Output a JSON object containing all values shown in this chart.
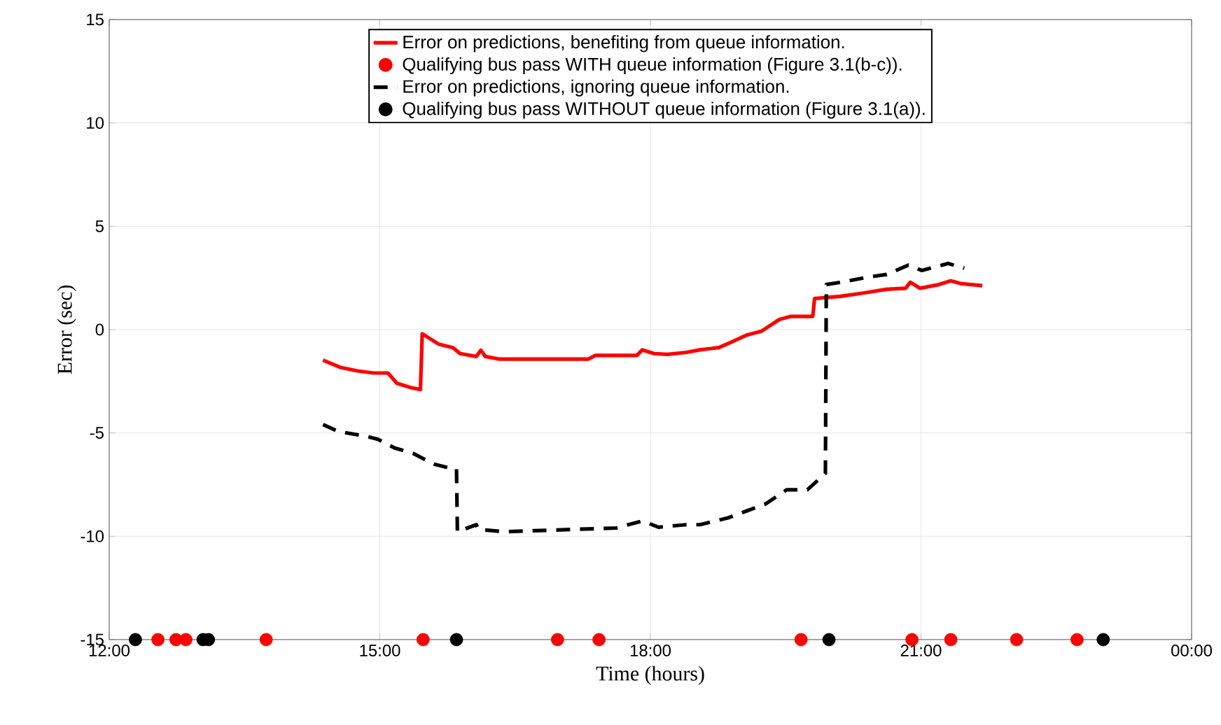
{
  "chart_data": {
    "type": "line",
    "xlabel": "Time (hours)",
    "ylabel": "Error (sec)",
    "xlim": [
      12,
      24
    ],
    "xticks": [
      {
        "value": 12,
        "label": "12:00"
      },
      {
        "value": 15,
        "label": "15:00"
      },
      {
        "value": 18,
        "label": "18:00"
      },
      {
        "value": 21,
        "label": "21:00"
      },
      {
        "value": 24,
        "label": "00:00"
      }
    ],
    "ylim": [
      -15,
      15
    ],
    "yticks": [
      -15,
      -10,
      -5,
      0,
      5,
      10,
      15
    ],
    "grid": true,
    "legend": "top",
    "series": [
      {
        "name": "Error on predictions, benefiting from queue information.",
        "color": "#ff0000",
        "line_style": "solid",
        "x": [
          14.37,
          14.57,
          14.75,
          14.93,
          15.09,
          15.19,
          15.34,
          15.45,
          15.47,
          15.65,
          15.81,
          15.89,
          16.07,
          16.12,
          16.17,
          16.33,
          17.31,
          17.39,
          17.85,
          17.91,
          18.04,
          18.19,
          18.4,
          18.55,
          18.76,
          18.91,
          19.07,
          19.23,
          19.43,
          19.56,
          19.8,
          19.82,
          20.11,
          20.36,
          20.62,
          20.83,
          20.88,
          20.99,
          21.2,
          21.33,
          21.45,
          21.68
        ],
        "values": [
          -1.48,
          -1.84,
          -2.0,
          -2.1,
          -2.1,
          -2.6,
          -2.8,
          -2.9,
          -0.2,
          -0.7,
          -0.87,
          -1.16,
          -1.3,
          -1.0,
          -1.3,
          -1.43,
          -1.43,
          -1.25,
          -1.25,
          -0.98,
          -1.16,
          -1.2,
          -1.1,
          -0.98,
          -0.87,
          -0.58,
          -0.26,
          -0.08,
          0.49,
          0.64,
          0.64,
          1.5,
          1.61,
          1.77,
          1.95,
          2.0,
          2.29,
          2.0,
          2.18,
          2.36,
          2.22,
          2.13
        ]
      },
      {
        "name": "Qualifying bus pass WITH queue information (Figure 3.1(b-c)).",
        "type": "scatter",
        "color": "#ff0000",
        "marker": "circle",
        "x": [
          12.54,
          12.74,
          12.85,
          13.74,
          15.48,
          16.97,
          17.43,
          19.67,
          20.9,
          21.33,
          22.06,
          22.73
        ],
        "values": [
          -15,
          -15,
          -15,
          -15,
          -15,
          -15,
          -15,
          -15,
          -15,
          -15,
          -15,
          -15
        ]
      },
      {
        "name": "Error on predictions, ignoring queue information.",
        "color": "#000000",
        "line_style": "dashed",
        "x": [
          14.37,
          14.54,
          14.85,
          14.98,
          15.16,
          15.37,
          15.6,
          15.81,
          15.85,
          15.86,
          16.07,
          16.09,
          16.38,
          17.62,
          17.91,
          18.09,
          18.4,
          18.55,
          18.86,
          19.07,
          19.28,
          19.51,
          19.74,
          19.94,
          19.95,
          20.11,
          20.39,
          20.62,
          20.86,
          21.01,
          21.3,
          21.48
        ],
        "values": [
          -4.59,
          -4.93,
          -5.16,
          -5.31,
          -5.72,
          -5.99,
          -6.51,
          -6.74,
          -6.74,
          -9.78,
          -9.44,
          -9.67,
          -9.78,
          -9.6,
          -9.26,
          -9.56,
          -9.44,
          -9.44,
          -9.11,
          -8.77,
          -8.43,
          -7.75,
          -7.75,
          -6.96,
          2.18,
          2.29,
          2.52,
          2.67,
          3.12,
          2.86,
          3.2,
          2.97
        ]
      },
      {
        "name": "Qualifying bus pass WITHOUT queue information (Figure 3.1(a)).",
        "type": "scatter",
        "color": "#000000",
        "marker": "circle",
        "x": [
          12.29,
          13.04,
          13.1,
          15.85,
          19.98,
          23.02
        ],
        "values": [
          -15,
          -15,
          -15,
          -15,
          -15,
          -15
        ]
      }
    ]
  }
}
